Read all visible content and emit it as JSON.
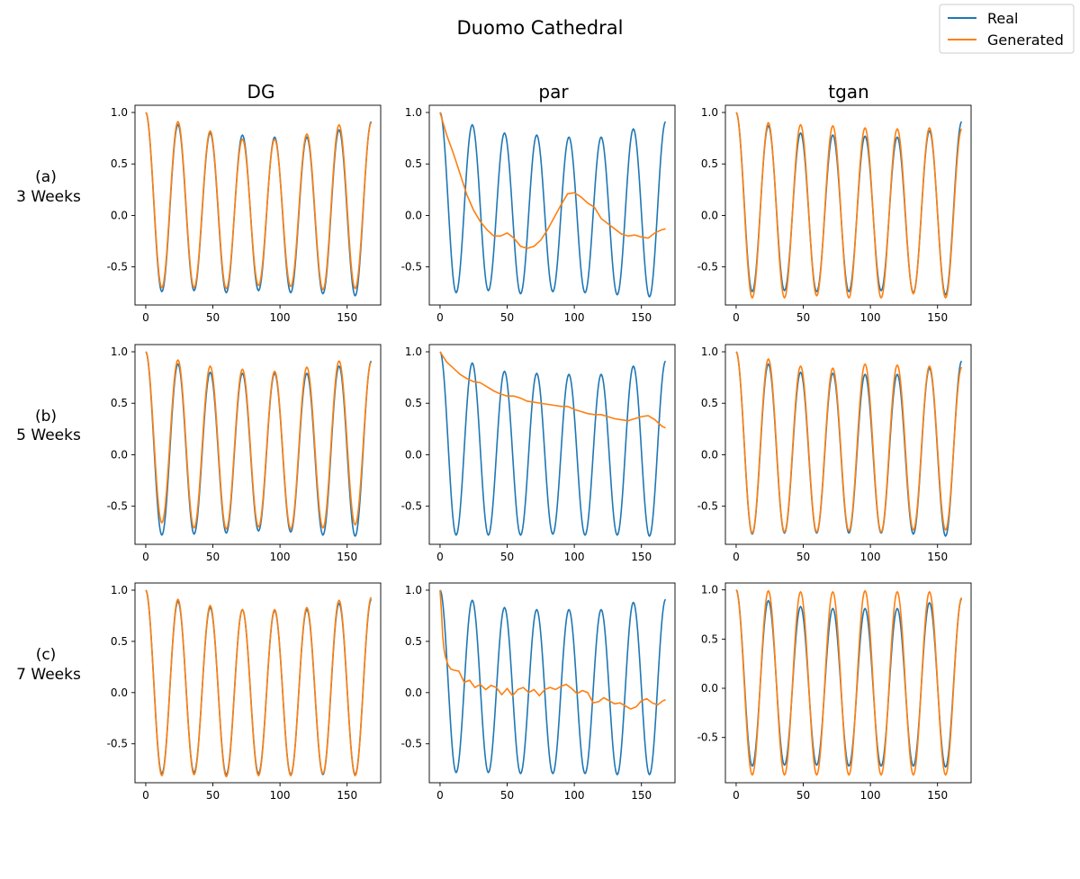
{
  "figure": {
    "title": "Duomo Cathedral",
    "legend": {
      "placement": "top-right",
      "entries": [
        "Real",
        "Generated"
      ]
    },
    "columns": [
      "DG",
      "par",
      "tgan"
    ],
    "rows": [
      {
        "letter": "(a)",
        "label": "3 Weeks"
      },
      {
        "letter": "(b)",
        "label": "5 Weeks"
      },
      {
        "letter": "(c)",
        "label": "7 Weeks"
      }
    ],
    "colors": {
      "real": "#1f77b4",
      "generated": "#ff7f0e"
    },
    "xticks": [
      0,
      50,
      100,
      150
    ],
    "yticks": [
      -0.5,
      0.0,
      0.5,
      1.0
    ]
  },
  "chart_data": [
    {
      "type": "line",
      "title": "DG",
      "row": "(a) 3 Weeks",
      "xlim": [
        -8,
        175
      ],
      "ylim": [
        -0.87,
        1.07
      ],
      "grid": false,
      "real": {
        "name": "Real",
        "period": 24,
        "peaks": [
          0.88,
          0.8,
          0.78,
          0.76,
          0.76,
          0.83
        ],
        "troughs": [
          -0.74,
          -0.73,
          -0.75,
          -0.73,
          -0.75,
          -0.76,
          -0.78
        ],
        "end": 0.91
      },
      "generated": {
        "name": "Generated",
        "model": "seasonal",
        "period": 24,
        "peaks": [
          0.91,
          0.82,
          0.74,
          0.74,
          0.79,
          0.88
        ],
        "troughs": [
          -0.7,
          -0.7,
          -0.71,
          -0.68,
          -0.69,
          -0.72,
          -0.71
        ],
        "end": 0.9
      }
    },
    {
      "type": "line",
      "title": "par",
      "row": "(a) 3 Weeks",
      "xlim": [
        -8,
        175
      ],
      "ylim": [
        -0.87,
        1.07
      ],
      "grid": false,
      "real": {
        "name": "Real",
        "period": 24,
        "peaks": [
          0.88,
          0.8,
          0.78,
          0.76,
          0.76,
          0.84
        ],
        "troughs": [
          -0.75,
          -0.73,
          -0.76,
          -0.74,
          -0.75,
          -0.77,
          -0.79
        ],
        "end": 0.91
      },
      "generated": {
        "name": "Generated",
        "model": "points",
        "x": [
          0,
          5,
          10,
          15,
          20,
          25,
          30,
          35,
          40,
          45,
          50,
          55,
          60,
          65,
          70,
          75,
          80,
          85,
          90,
          95,
          100,
          105,
          110,
          115,
          120,
          125,
          130,
          135,
          140,
          145,
          150,
          155,
          160,
          165,
          168
        ],
        "y": [
          1.0,
          0.78,
          0.6,
          0.4,
          0.2,
          0.05,
          -0.06,
          -0.14,
          -0.2,
          -0.2,
          -0.17,
          -0.22,
          -0.3,
          -0.32,
          -0.3,
          -0.24,
          -0.14,
          -0.02,
          0.1,
          0.21,
          0.22,
          0.18,
          0.12,
          0.08,
          -0.03,
          -0.08,
          -0.13,
          -0.18,
          -0.2,
          -0.19,
          -0.21,
          -0.22,
          -0.17,
          -0.14,
          -0.13
        ]
      }
    },
    {
      "type": "line",
      "title": "tgan",
      "row": "(a) 3 Weeks",
      "xlim": [
        -8,
        175
      ],
      "ylim": [
        -0.87,
        1.07
      ],
      "grid": false,
      "real": {
        "name": "Real",
        "period": 24,
        "peaks": [
          0.87,
          0.8,
          0.78,
          0.77,
          0.76,
          0.82
        ],
        "troughs": [
          -0.74,
          -0.73,
          -0.74,
          -0.74,
          -0.73,
          -0.75,
          -0.77
        ],
        "end": 0.91
      },
      "generated": {
        "name": "Generated",
        "model": "seasonal",
        "period": 24,
        "peaks": [
          0.9,
          0.88,
          0.87,
          0.85,
          0.84,
          0.85
        ],
        "troughs": [
          -0.8,
          -0.8,
          -0.78,
          -0.8,
          -0.8,
          -0.76,
          -0.8
        ],
        "end": 0.84
      }
    },
    {
      "type": "line",
      "title": "DG",
      "row": "(b) 5 Weeks",
      "xlim": [
        -8,
        175
      ],
      "ylim": [
        -0.87,
        1.07
      ],
      "grid": false,
      "real": {
        "name": "Real",
        "period": 24,
        "peaks": [
          0.88,
          0.8,
          0.79,
          0.79,
          0.79,
          0.86
        ],
        "troughs": [
          -0.78,
          -0.77,
          -0.76,
          -0.74,
          -0.75,
          -0.78,
          -0.79
        ],
        "end": 0.91
      },
      "generated": {
        "name": "Generated",
        "model": "seasonal",
        "period": 24,
        "peaks": [
          0.92,
          0.86,
          0.83,
          0.81,
          0.85,
          0.91
        ],
        "troughs": [
          -0.66,
          -0.71,
          -0.72,
          -0.7,
          -0.72,
          -0.71,
          -0.68
        ],
        "end": 0.9
      }
    },
    {
      "type": "line",
      "title": "par",
      "row": "(b) 5 Weeks",
      "xlim": [
        -8,
        175
      ],
      "ylim": [
        -0.87,
        1.07
      ],
      "grid": false,
      "real": {
        "name": "Real",
        "period": 24,
        "peaks": [
          0.89,
          0.81,
          0.79,
          0.78,
          0.78,
          0.86
        ],
        "troughs": [
          -0.78,
          -0.78,
          -0.78,
          -0.77,
          -0.78,
          -0.78,
          -0.79
        ],
        "end": 0.91
      },
      "generated": {
        "name": "Generated",
        "model": "points",
        "x": [
          0,
          5,
          10,
          15,
          20,
          25,
          30,
          35,
          40,
          45,
          50,
          55,
          60,
          65,
          70,
          75,
          80,
          85,
          90,
          95,
          100,
          105,
          110,
          115,
          120,
          125,
          130,
          135,
          140,
          145,
          150,
          155,
          160,
          165,
          168
        ],
        "y": [
          1.0,
          0.9,
          0.84,
          0.78,
          0.74,
          0.71,
          0.7,
          0.66,
          0.62,
          0.59,
          0.57,
          0.57,
          0.55,
          0.52,
          0.51,
          0.5,
          0.49,
          0.48,
          0.47,
          0.47,
          0.44,
          0.42,
          0.4,
          0.39,
          0.39,
          0.37,
          0.35,
          0.34,
          0.33,
          0.35,
          0.37,
          0.38,
          0.34,
          0.28,
          0.26
        ]
      }
    },
    {
      "type": "line",
      "title": "tgan",
      "row": "(b) 5 Weeks",
      "xlim": [
        -8,
        175
      ],
      "ylim": [
        -0.87,
        1.07
      ],
      "grid": false,
      "real": {
        "name": "Real",
        "period": 24,
        "peaks": [
          0.88,
          0.8,
          0.79,
          0.78,
          0.78,
          0.84
        ],
        "troughs": [
          -0.77,
          -0.76,
          -0.76,
          -0.76,
          -0.76,
          -0.77,
          -0.79
        ],
        "end": 0.91
      },
      "generated": {
        "name": "Generated",
        "model": "seasonal",
        "period": 24,
        "peaks": [
          0.93,
          0.86,
          0.84,
          0.88,
          0.87,
          0.86
        ],
        "troughs": [
          -0.76,
          -0.75,
          -0.75,
          -0.74,
          -0.75,
          -0.73,
          -0.73
        ],
        "end": 0.85
      }
    },
    {
      "type": "line",
      "title": "DG",
      "row": "(c) 7 Weeks",
      "xlim": [
        -8,
        175
      ],
      "ylim": [
        -0.88,
        1.07
      ],
      "grid": false,
      "real": {
        "name": "Real",
        "period": 24,
        "peaks": [
          0.89,
          0.83,
          0.81,
          0.8,
          0.81,
          0.87
        ],
        "troughs": [
          -0.79,
          -0.78,
          -0.8,
          -0.79,
          -0.8,
          -0.8,
          -0.8
        ],
        "end": 0.91
      },
      "generated": {
        "name": "Generated",
        "model": "seasonal",
        "period": 24,
        "peaks": [
          0.91,
          0.85,
          0.81,
          0.81,
          0.83,
          0.9
        ],
        "troughs": [
          -0.81,
          -0.8,
          -0.82,
          -0.81,
          -0.81,
          -0.79,
          -0.81
        ],
        "end": 0.93
      }
    },
    {
      "type": "line",
      "title": "par",
      "row": "(c) 7 Weeks",
      "xlim": [
        -8,
        175
      ],
      "ylim": [
        -0.88,
        1.07
      ],
      "grid": false,
      "real": {
        "name": "Real",
        "period": 24,
        "peaks": [
          0.9,
          0.83,
          0.81,
          0.81,
          0.81,
          0.88
        ],
        "troughs": [
          -0.78,
          -0.78,
          -0.79,
          -0.79,
          -0.79,
          -0.8,
          -0.8
        ],
        "end": 0.91
      },
      "generated": {
        "name": "Generated",
        "model": "points",
        "x": [
          0,
          1,
          2,
          3,
          4,
          6,
          8,
          10,
          14,
          18,
          22,
          26,
          30,
          34,
          38,
          42,
          46,
          50,
          54,
          58,
          62,
          66,
          70,
          74,
          78,
          82,
          86,
          90,
          94,
          98,
          102,
          106,
          110,
          114,
          118,
          122,
          126,
          130,
          134,
          138,
          142,
          146,
          150,
          154,
          158,
          162,
          166,
          168
        ],
        "y": [
          1.0,
          0.8,
          0.55,
          0.42,
          0.35,
          0.27,
          0.23,
          0.22,
          0.21,
          0.1,
          0.12,
          0.05,
          0.08,
          0.03,
          0.07,
          0.05,
          -0.02,
          0.04,
          -0.03,
          0.03,
          0.05,
          0.0,
          0.03,
          -0.03,
          0.03,
          0.05,
          0.03,
          0.06,
          0.08,
          0.04,
          -0.01,
          0.02,
          0.0,
          -0.1,
          -0.09,
          -0.05,
          -0.08,
          -0.11,
          -0.1,
          -0.13,
          -0.16,
          -0.14,
          -0.08,
          -0.06,
          -0.1,
          -0.12,
          -0.08,
          -0.07
        ]
      }
    },
    {
      "type": "line",
      "title": "tgan",
      "row": "(c) 7 Weeks",
      "xlim": [
        -8,
        175
      ],
      "ylim": [
        -0.96,
        1.07
      ],
      "grid": false,
      "real": {
        "name": "Real",
        "period": 24,
        "peaks": [
          0.89,
          0.83,
          0.81,
          0.81,
          0.81,
          0.87
        ],
        "troughs": [
          -0.79,
          -0.78,
          -0.78,
          -0.79,
          -0.79,
          -0.79,
          -0.8
        ],
        "end": 0.91
      },
      "generated": {
        "name": "Generated",
        "model": "seasonal",
        "period": 24,
        "peaks": [
          0.99,
          0.98,
          0.98,
          0.99,
          0.98,
          0.98
        ],
        "troughs": [
          -0.88,
          -0.88,
          -0.88,
          -0.88,
          -0.88,
          -0.88,
          -0.88
        ],
        "end": 0.92
      }
    }
  ]
}
